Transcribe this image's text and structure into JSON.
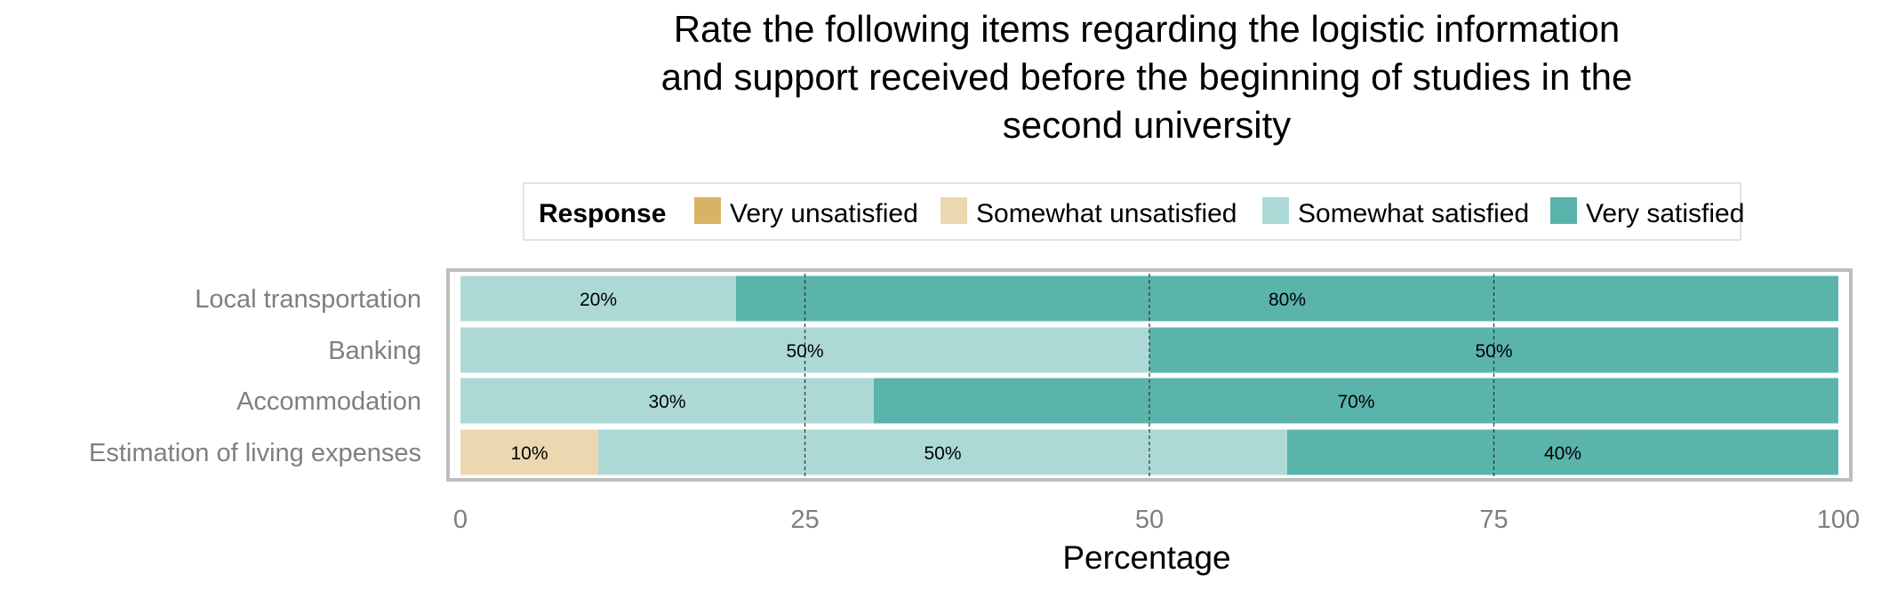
{
  "chart_data": {
    "type": "bar",
    "orientation": "horizontal",
    "stacked": true,
    "title": [
      "Rate the following items regarding the logistic information",
      "and support received before the beginning of studies in the",
      "second university"
    ],
    "xlabel": "Percentage",
    "ylabel": "",
    "xlim": [
      0,
      100
    ],
    "x_ticks": [
      "0",
      "25",
      "50",
      "75",
      "100"
    ],
    "legend_title": "Response",
    "legend_position": "top",
    "categories": [
      "Local transportation",
      "Banking",
      "Accommodation",
      "Estimation of living expenses"
    ],
    "series": [
      {
        "name": "Very unsatisfied",
        "color": "#d8b365",
        "values": [
          0,
          0,
          0,
          0
        ],
        "labels": [
          "",
          "",
          "",
          ""
        ]
      },
      {
        "name": "Somewhat unsatisfied",
        "color": "#ebd8b0",
        "values": [
          0,
          0,
          0,
          10
        ],
        "labels": [
          "",
          "",
          "",
          "10%"
        ]
      },
      {
        "name": "Somewhat satisfied",
        "color": "#acd9d6",
        "values": [
          20,
          50,
          30,
          50
        ],
        "labels": [
          "20%",
          "50%",
          "30%",
          "50%"
        ]
      },
      {
        "name": "Very satisfied",
        "color": "#5ab4ac",
        "values": [
          80,
          50,
          70,
          40
        ],
        "labels": [
          "80%",
          "50%",
          "70%",
          "40%"
        ]
      }
    ],
    "grid": true
  }
}
